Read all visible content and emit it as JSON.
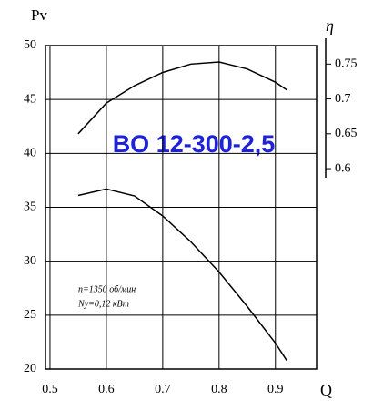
{
  "chart_data": {
    "type": "line",
    "title": "BO 12-300-2,5",
    "y_label": "Pv",
    "y2_label": "η",
    "x_label": "Q",
    "annotations": [
      "n=1350 об/мин",
      "Nу=0,12 кВт"
    ],
    "x": [
      0.55,
      0.6,
      0.65,
      0.7,
      0.75,
      0.8,
      0.85,
      0.9,
      0.92
    ],
    "series": [
      {
        "color": "#000000",
        "values": [
          36.1,
          36.7,
          36.05,
          34.2,
          31.8,
          29.0,
          25.8,
          22.4,
          20.8
        ]
      },
      {
        "color": "#000000",
        "axis": "y2",
        "values": [
          0.65,
          0.694,
          0.719,
          0.738,
          0.75,
          0.753,
          0.743,
          0.724,
          0.713
        ]
      }
    ],
    "xlim": [
      0.492,
      0.973
    ],
    "xticks": [
      0.5,
      0.6,
      0.7,
      0.8,
      0.9
    ],
    "ylim": [
      20,
      50
    ],
    "yticks": [
      20,
      25,
      30,
      35,
      40,
      45,
      50
    ],
    "y2lim": [
      0.587,
      0.787
    ],
    "y2ticks": [
      0.6,
      0.65,
      0.7,
      0.75
    ],
    "grid": true
  }
}
